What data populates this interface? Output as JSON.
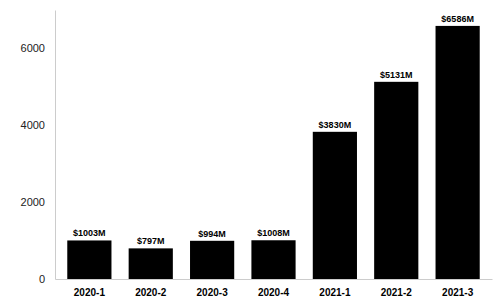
{
  "chart_data": {
    "type": "bar",
    "categories": [
      "2020-1",
      "2020-2",
      "2020-3",
      "2020-4",
      "2021-1",
      "2021-2",
      "2021-3"
    ],
    "values": [
      1003,
      797,
      994,
      1008,
      3830,
      5131,
      6586
    ],
    "value_labels": [
      "$1003M",
      "$797M",
      "$994M",
      "$1008M",
      "$3830M",
      "$5131M",
      "$6586M"
    ],
    "data_labels": true,
    "color": "#000000",
    "ylim": [
      0,
      7000
    ],
    "yticks": [
      0,
      2000,
      4000,
      6000
    ],
    "grid": false
  }
}
